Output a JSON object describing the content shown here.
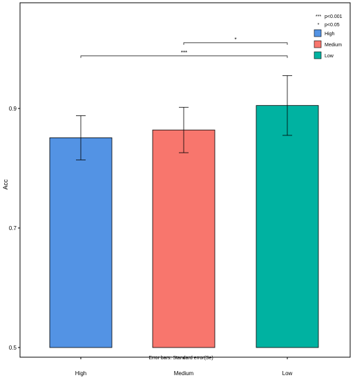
{
  "chart_data": {
    "type": "bar",
    "title": "",
    "xlabel": "",
    "ylabel": "Acc",
    "categories": [
      "High",
      "Medium",
      "Low"
    ],
    "values": [
      0.851,
      0.864,
      0.905
    ],
    "error": [
      0.037,
      0.038,
      0.05
    ],
    "colors": [
      "#5393e4",
      "#f8766d",
      "#00b2a1"
    ],
    "ylim": [
      0.5,
      1.08
    ],
    "yticks": [
      {
        "value": 0.5,
        "label": "0.5"
      },
      {
        "value": 0.7,
        "label": "0.7"
      },
      {
        "value": 0.9,
        "label": "0.9"
      }
    ],
    "grid": false,
    "legend": {
      "placement": "top-right",
      "entries": [
        {
          "label": "High",
          "color": "#5393e4"
        },
        {
          "label": "Medium",
          "color": "#f8766d"
        },
        {
          "label": "Low",
          "color": "#00b2a1"
        }
      ]
    },
    "significance_key": [
      {
        "symbol": "***",
        "label": "p<0.001"
      },
      {
        "symbol": "*",
        "label": "p<0.05"
      }
    ],
    "comparisons": [
      {
        "from": "Medium",
        "to": "Low",
        "y": 1.01,
        "label": "*"
      },
      {
        "from": "High",
        "to": "Low",
        "y": 0.988,
        "label": "***"
      }
    ],
    "note": "Error bars: Standard error(Se)"
  }
}
